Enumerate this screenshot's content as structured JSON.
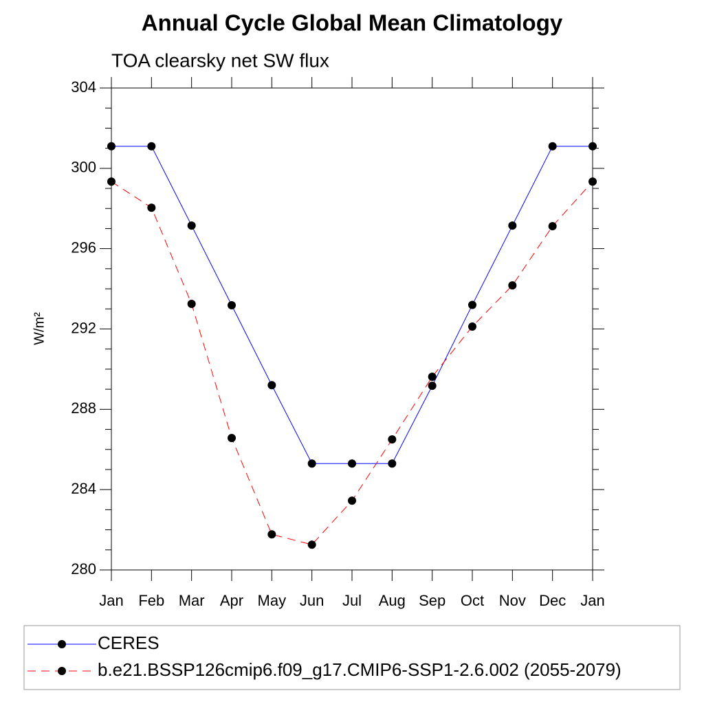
{
  "chart_data": {
    "type": "line",
    "title": "Annual Cycle Global Mean Climatology",
    "subtitle": "TOA clearsky net SW flux",
    "y_label": "W/m²",
    "categories": [
      "Jan",
      "Feb",
      "Mar",
      "Apr",
      "May",
      "Jun",
      "Jul",
      "Aug",
      "Sep",
      "Oct",
      "Nov",
      "Dec",
      "Jan"
    ],
    "series": [
      {
        "name": "CERES",
        "color": "#0000ff",
        "dash": false,
        "values": [
          301.1,
          301.1,
          297.15,
          293.18,
          289.2,
          285.3,
          285.3,
          285.3,
          289.17,
          293.2,
          297.15,
          301.1,
          301.1
        ]
      },
      {
        "name": "b.e21.BSSP126cmip6.f09_g17.CMIP6-SSP1-2.6.002 (2055-2079)",
        "color": "#ff0000",
        "dash": true,
        "values": [
          299.34,
          298.04,
          293.25,
          286.57,
          281.77,
          281.26,
          283.45,
          286.5,
          289.62,
          292.12,
          294.17,
          297.12,
          299.34
        ]
      }
    ],
    "ylim": [
      280,
      304
    ],
    "yticks": [
      280,
      284,
      288,
      292,
      296,
      300,
      304
    ],
    "yminorticks": [
      281,
      282,
      283,
      285,
      286,
      287,
      289,
      290,
      291,
      293,
      294,
      295,
      297,
      298,
      299,
      301,
      302,
      303
    ]
  }
}
